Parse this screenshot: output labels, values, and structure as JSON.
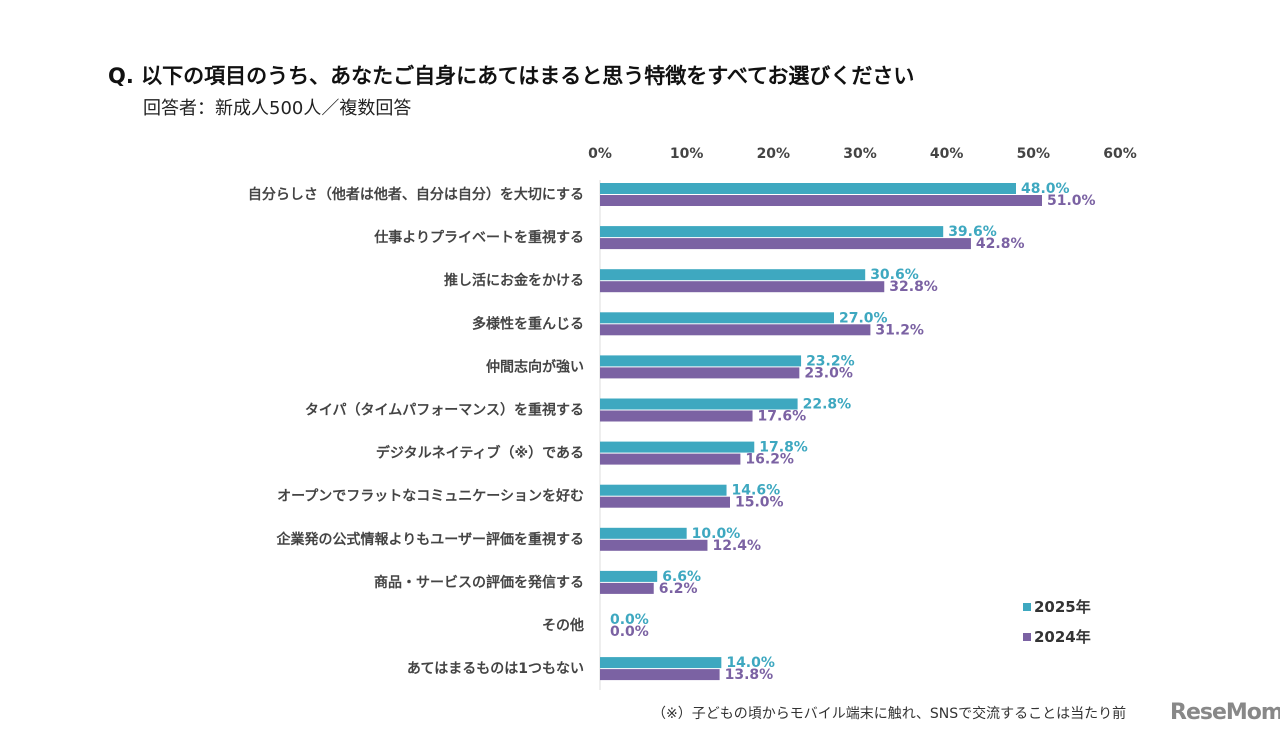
{
  "chart_data": {
    "type": "bar",
    "orientation": "horizontal",
    "title": "Q. 以下の項目のうち、あなたご自身にあてはまると思う特徴をすべてお選びください",
    "subtitle": "回答者：新成人500人／複数回答",
    "categories": [
      "自分らしさ（他者は他者、自分は自分）を大切にする",
      "仕事よりプライベートを重視する",
      "推し活にお金をかける",
      "多様性を重んじる",
      "仲間志向が強い",
      "タイパ（タイムパフォーマンス）を重視する",
      "デジタルネイティブ（※）である",
      "オープンでフラットなコミュニケーションを好む",
      "企業発の公式情報よりもユーザー評価を重視する",
      "商品・サービスの評価を発信する",
      "その他",
      "あてはまるものは1つもない"
    ],
    "series": [
      {
        "name": "2025年",
        "color": "#3ea8c0",
        "values": [
          48.0,
          39.6,
          30.6,
          27.0,
          23.2,
          22.8,
          17.8,
          14.6,
          10.0,
          6.6,
          0.0,
          14.0
        ]
      },
      {
        "name": "2024年",
        "color": "#7b62a3",
        "values": [
          51.0,
          42.8,
          32.8,
          31.2,
          23.0,
          17.6,
          16.2,
          15.0,
          12.4,
          6.2,
          0.0,
          13.8
        ]
      }
    ],
    "xlim": [
      0,
      60
    ],
    "xticks": [
      "0%",
      "10%",
      "20%",
      "30%",
      "40%",
      "50%",
      "60%"
    ],
    "grid": false,
    "legend_position": "bottom-right",
    "footnote": "（※）子どもの頃からモバイル端末に触れ、SNSで交流することは当たり前"
  },
  "logo": "ReseMom"
}
